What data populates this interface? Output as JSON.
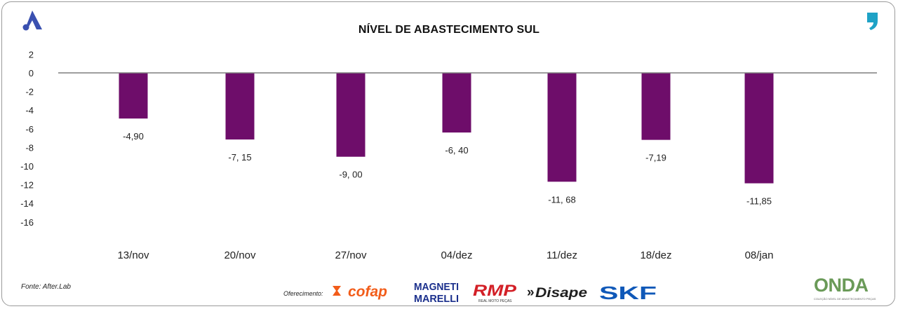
{
  "colors": {
    "bar": "#6e0d6a",
    "axis": "#7f7f7f",
    "text": "#222222",
    "brand_blue": "#3a50b0",
    "brand_teal": "#1ea2c6"
  },
  "brand": {
    "logo_icon": "triangle-a-icon",
    "corner_icon": "comma-icon"
  },
  "chart_data": {
    "type": "bar",
    "title": "NÍVEL DE ABASTECIMENTO SUL",
    "categories": [
      "13/nov",
      "20/nov",
      "27/nov",
      "04/dez",
      "11/dez",
      "18/dez",
      "08/jan"
    ],
    "values": [
      -4.9,
      -7.15,
      -9.0,
      -6.4,
      -11.68,
      -7.19,
      -11.85
    ],
    "data_labels": [
      "-4,90",
      "-7, 15",
      "-9, 00",
      "-6, 40",
      "-11, 68",
      "-7,19",
      "-11,85"
    ],
    "y_ticks": [
      2,
      0,
      -2,
      -4,
      -6,
      -8,
      -10,
      -12,
      -14,
      -16
    ],
    "y_tick_labels": [
      "2",
      "0",
      "-2",
      "-4",
      "-6",
      "-8",
      "-10",
      "-12",
      "-14",
      "-16"
    ],
    "ylim": [
      -16,
      2
    ],
    "xlabel": "",
    "ylabel": "",
    "grid": false,
    "legend": "none"
  },
  "footer": {
    "source": "Fonte: After.Lab",
    "sponsor_label": "Oferecimento:",
    "sponsors": [
      "cofap",
      "MAGNETI MARELLI",
      "RMP",
      "Disape",
      "SKF"
    ],
    "rmp_sub": "REAL MOTO PEÇAS",
    "onda": "ONDA",
    "onda_sub": "COLEÇÃO NÍVEL DE ABASTECIMENTO PEÇAS"
  }
}
